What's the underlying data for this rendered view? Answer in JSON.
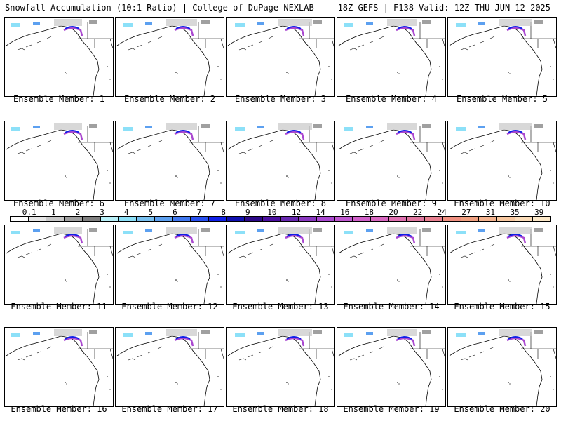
{
  "header": {
    "title": "Snowfall Accumulation (10:1 Ratio) | College of DuPage NEXLAB",
    "valid": "18Z GEFS | F138 Valid: 12Z THU JUN 12 2025"
  },
  "panels": [
    {
      "label": "Ensemble Member: 1"
    },
    {
      "label": "Ensemble Member: 2"
    },
    {
      "label": "Ensemble Member: 3"
    },
    {
      "label": "Ensemble Member: 4"
    },
    {
      "label": "Ensemble Member: 5"
    },
    {
      "label": "Ensemble Member: 6"
    },
    {
      "label": "Ensemble Member: 7"
    },
    {
      "label": "Ensemble Member: 8"
    },
    {
      "label": "Ensemble Member: 9"
    },
    {
      "label": "Ensemble Member: 10"
    },
    {
      "label": "Ensemble Member: 11"
    },
    {
      "label": "Ensemble Member: 12"
    },
    {
      "label": "Ensemble Member: 13"
    },
    {
      "label": "Ensemble Member: 14"
    },
    {
      "label": "Ensemble Member: 15"
    },
    {
      "label": "Ensemble Member: 16"
    },
    {
      "label": "Ensemble Member: 17"
    },
    {
      "label": "Ensemble Member: 18"
    },
    {
      "label": "Ensemble Member: 19"
    },
    {
      "label": "Ensemble Member: 20"
    }
  ],
  "colorbar": {
    "ticks": [
      "0.1",
      "1",
      "2",
      "3",
      "4",
      "5",
      "6",
      "7",
      "8",
      "9",
      "10",
      "12",
      "14",
      "16",
      "18",
      "20",
      "22",
      "24",
      "27",
      "31",
      "35",
      "39"
    ],
    "colors": [
      "#ffffff",
      "#e6e6e6",
      "#c8c8c8",
      "#a0a0a0",
      "#808080",
      "#b8f0f8",
      "#8ce0f8",
      "#78c0f0",
      "#5ca0f0",
      "#4078f0",
      "#2850f0",
      "#1020e8",
      "#1010b0",
      "#2c0888",
      "#4c10a0",
      "#6828b0",
      "#8a38c0",
      "#aa48d0",
      "#c058d0",
      "#d060c8",
      "#d868c0",
      "#e070b0",
      "#e078a0",
      "#e88090",
      "#f09080",
      "#f0a080",
      "#f4b490",
      "#f8c8a0",
      "#fbdcb8",
      "#fce8c8"
    ]
  }
}
